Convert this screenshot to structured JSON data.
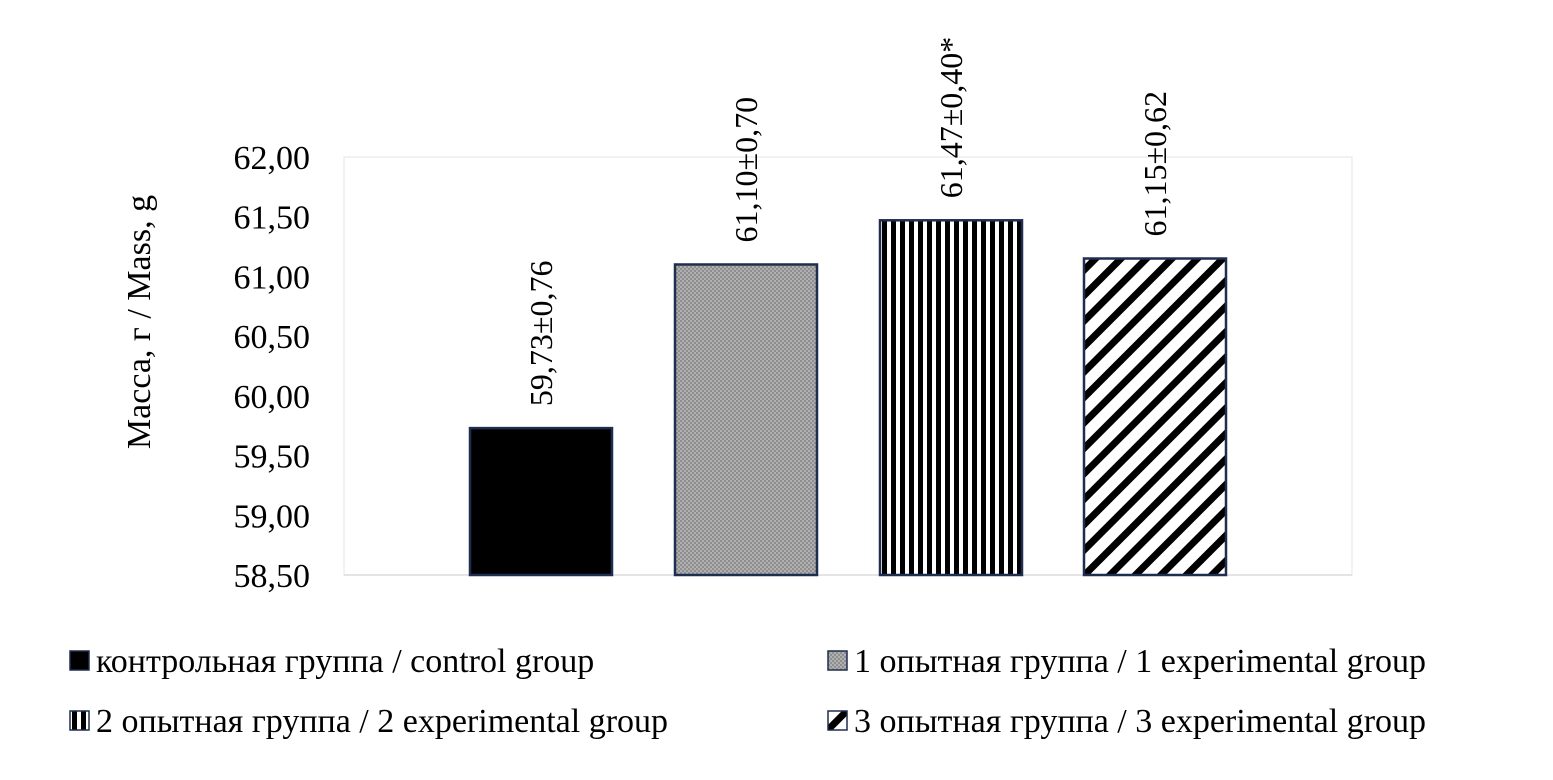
{
  "chart_data": {
    "type": "bar",
    "ylabel": "Масса, г / Mass, g",
    "ylim": [
      58.5,
      62.0
    ],
    "yticks": [
      "62,00",
      "61,50",
      "61,00",
      "60,50",
      "60,00",
      "59,50",
      "59,00",
      "58,50"
    ],
    "ytick_values": [
      62.0,
      61.5,
      61.0,
      60.5,
      60.0,
      59.5,
      59.0,
      58.5
    ],
    "grid": false,
    "legend_position": "bottom",
    "series": [
      {
        "name": "контрольная группа / control group",
        "value": 59.73,
        "label": "59,73±0,76",
        "pattern": "solid",
        "color": "#000000"
      },
      {
        "name": "1 опытная группа / 1 experimental group",
        "value": 61.1,
        "label": "61,10±0,70",
        "pattern": "gray",
        "color": "#a6a6a6"
      },
      {
        "name": "2 опытная группа / 2 experimental group",
        "value": 61.47,
        "label": "61,47±0,40*",
        "pattern": "vertical-stripes",
        "color": "#000000"
      },
      {
        "name": "3 опытная группа / 3 experimental group",
        "value": 61.15,
        "label": "61,15±0,62",
        "pattern": "diagonal-stripes",
        "color": "#000000"
      }
    ],
    "bar_border_color": "#1f2d4e"
  }
}
